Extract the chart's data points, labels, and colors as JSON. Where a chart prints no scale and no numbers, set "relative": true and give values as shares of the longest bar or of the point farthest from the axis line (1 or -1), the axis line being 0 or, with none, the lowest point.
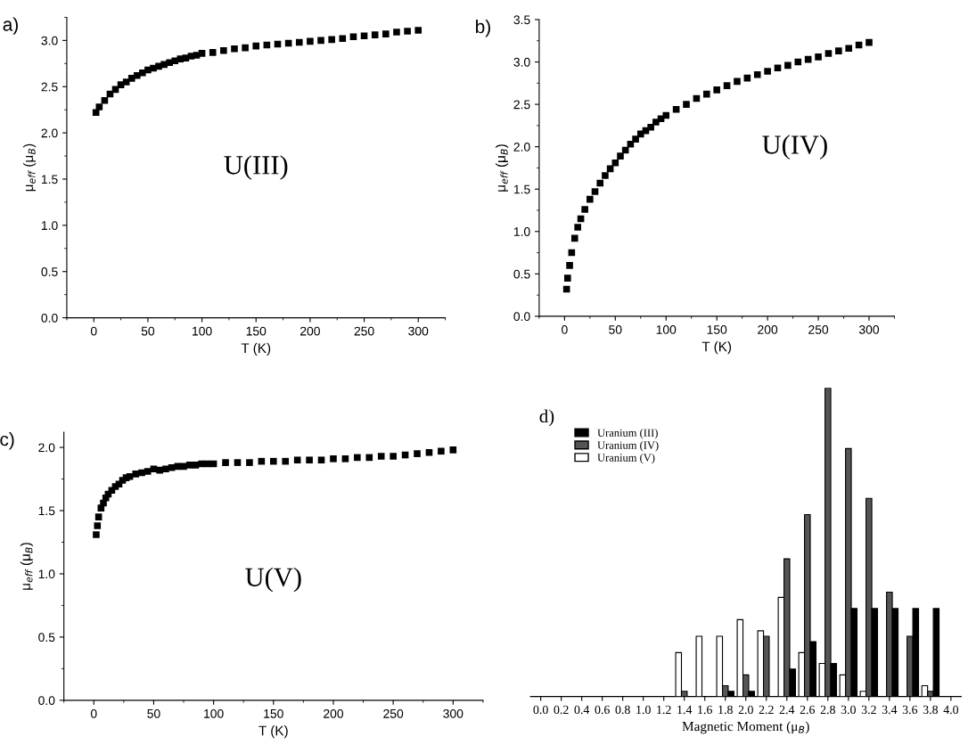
{
  "chart_data": [
    {
      "type": "scatter",
      "title": "a)",
      "xlabel": "T (K)",
      "ylabel": "μ$_{eff}$ (μ$_{B}$)",
      "annotations": [
        "U(III)"
      ],
      "marker": "square",
      "grid": false,
      "legend": false,
      "xlim": [
        -25,
        325
      ],
      "xticks": [
        0,
        50,
        100,
        150,
        200,
        250,
        300
      ],
      "ylim": [
        0,
        3.25
      ],
      "yticks": [
        {
          "value": 0,
          "label": "0.0"
        },
        0.5,
        {
          "value": 1,
          "label": "1.0"
        },
        1.5,
        {
          "value": 2,
          "label": "2.0"
        },
        2.5,
        {
          "value": 3,
          "label": "3.0"
        }
      ],
      "x": [
        2,
        5,
        10,
        15,
        20,
        25,
        30,
        35,
        40,
        45,
        50,
        55,
        60,
        65,
        70,
        75,
        80,
        85,
        90,
        95,
        100,
        110,
        120,
        130,
        140,
        150,
        160,
        170,
        180,
        190,
        200,
        210,
        220,
        230,
        240,
        250,
        260,
        270,
        280,
        290,
        300
      ],
      "series": [
        {
          "color": "#000000",
          "values": [
            2.22,
            2.28,
            2.35,
            2.42,
            2.47,
            2.52,
            2.55,
            2.59,
            2.62,
            2.65,
            2.68,
            2.7,
            2.72,
            2.74,
            2.76,
            2.78,
            2.8,
            2.81,
            2.83,
            2.84,
            2.86,
            2.87,
            2.89,
            2.91,
            2.92,
            2.94,
            2.95,
            2.96,
            2.97,
            2.98,
            2.99,
            3.0,
            3.01,
            3.02,
            3.04,
            3.05,
            3.06,
            3.07,
            3.09,
            3.1,
            3.11
          ]
        }
      ]
    },
    {
      "type": "scatter",
      "title": "b)",
      "xlabel": "T (K)",
      "ylabel": "μ$_{eff}$ (μ$_{B}$)",
      "annotations": [
        "U(IV)"
      ],
      "marker": "square",
      "grid": false,
      "legend": false,
      "xlim": [
        -25,
        325
      ],
      "xticks": [
        0,
        50,
        100,
        150,
        200,
        250,
        300
      ],
      "ylim": [
        0,
        3.5
      ],
      "yticks": [
        {
          "value": 0,
          "label": "0.0"
        },
        0.5,
        {
          "value": 1,
          "label": "1.0"
        },
        1.5,
        {
          "value": 2,
          "label": "2.0"
        },
        2.5,
        {
          "value": 3,
          "label": "3.0"
        },
        3.5
      ],
      "x": [
        2,
        3,
        5,
        7,
        10,
        13,
        16,
        20,
        25,
        30,
        35,
        40,
        45,
        50,
        55,
        60,
        65,
        70,
        75,
        80,
        85,
        90,
        95,
        100,
        110,
        120,
        130,
        140,
        150,
        160,
        170,
        180,
        190,
        200,
        210,
        220,
        230,
        240,
        250,
        260,
        270,
        280,
        290,
        300
      ],
      "series": [
        {
          "color": "#000000",
          "values": [
            0.32,
            0.45,
            0.6,
            0.75,
            0.92,
            1.05,
            1.15,
            1.26,
            1.38,
            1.47,
            1.57,
            1.66,
            1.74,
            1.81,
            1.89,
            1.96,
            2.03,
            2.09,
            2.15,
            2.19,
            2.23,
            2.29,
            2.33,
            2.37,
            2.44,
            2.5,
            2.57,
            2.62,
            2.67,
            2.72,
            2.77,
            2.81,
            2.85,
            2.89,
            2.93,
            2.96,
            3.0,
            3.03,
            3.06,
            3.1,
            3.13,
            3.16,
            3.2,
            3.23
          ]
        }
      ]
    },
    {
      "type": "scatter",
      "title": "c)",
      "xlabel": "T (K)",
      "ylabel": "μ$_{eff}$ (μ$_{B}$)",
      "annotations": [
        "U(V)"
      ],
      "marker": "square",
      "grid": false,
      "legend": false,
      "xlim": [
        -25,
        325
      ],
      "xticks": [
        0,
        50,
        100,
        150,
        200,
        250,
        300
      ],
      "ylim": [
        0,
        2.12
      ],
      "yticks": [
        {
          "value": 0,
          "label": "0.0"
        },
        0.5,
        {
          "value": 1,
          "label": "1.0"
        },
        1.5,
        {
          "value": 2,
          "label": "2.0"
        }
      ],
      "x": [
        2,
        3,
        4,
        6,
        8,
        10,
        12,
        15,
        18,
        21,
        24,
        27,
        30,
        35,
        40,
        45,
        50,
        55,
        60,
        65,
        70,
        75,
        80,
        85,
        90,
        95,
        100,
        110,
        120,
        130,
        140,
        150,
        160,
        170,
        180,
        190,
        200,
        210,
        220,
        230,
        240,
        250,
        260,
        270,
        280,
        290,
        300
      ],
      "series": [
        {
          "color": "#000000",
          "values": [
            1.31,
            1.38,
            1.45,
            1.52,
            1.56,
            1.6,
            1.63,
            1.66,
            1.69,
            1.71,
            1.74,
            1.76,
            1.77,
            1.79,
            1.8,
            1.81,
            1.83,
            1.82,
            1.83,
            1.84,
            1.85,
            1.85,
            1.86,
            1.86,
            1.87,
            1.87,
            1.87,
            1.88,
            1.88,
            1.88,
            1.89,
            1.89,
            1.89,
            1.9,
            1.9,
            1.9,
            1.91,
            1.91,
            1.92,
            1.92,
            1.93,
            1.93,
            1.94,
            1.95,
            1.96,
            1.97,
            1.98
          ]
        }
      ]
    },
    {
      "type": "bar",
      "title": "d)",
      "xlabel": "Magnetic Moment (μ$_{B}$)",
      "relative": true,
      "tick_labels": "x",
      "legend": "top left",
      "grid": false,
      "categories": [
        "0.0",
        "0.2",
        "0.4",
        "0.6",
        "0.8",
        "1.0",
        "1.2",
        "1.4",
        "1.6",
        "1.8",
        "2.0",
        "2.2",
        "2.4",
        "2.6",
        "2.8",
        "3.0",
        "3.2",
        "3.4",
        "3.6",
        "3.8",
        "4.0"
      ],
      "series": [
        {
          "name": "Uranium (V)",
          "color": "#ffffff",
          "values": [
            null,
            null,
            null,
            null,
            null,
            null,
            null,
            0.142,
            0.195,
            0.195,
            0.249,
            0.213,
            0.321,
            0.142,
            0.107,
            0.07,
            0.017,
            null,
            null,
            0.035,
            null
          ]
        },
        {
          "name": "Uranium (IV)",
          "color": "#555555",
          "values": [
            null,
            null,
            null,
            null,
            null,
            null,
            null,
            0.017,
            null,
            0.035,
            0.07,
            0.195,
            0.446,
            0.589,
            1.0,
            0.803,
            0.642,
            0.338,
            0.195,
            0.017,
            null
          ]
        },
        {
          "name": "Uranium (III)",
          "color": "#000000",
          "values": [
            null,
            null,
            null,
            null,
            null,
            null,
            null,
            null,
            null,
            0.017,
            0.017,
            null,
            0.089,
            0.178,
            0.107,
            0.285,
            0.285,
            0.285,
            0.285,
            0.285,
            null
          ]
        }
      ]
    }
  ]
}
